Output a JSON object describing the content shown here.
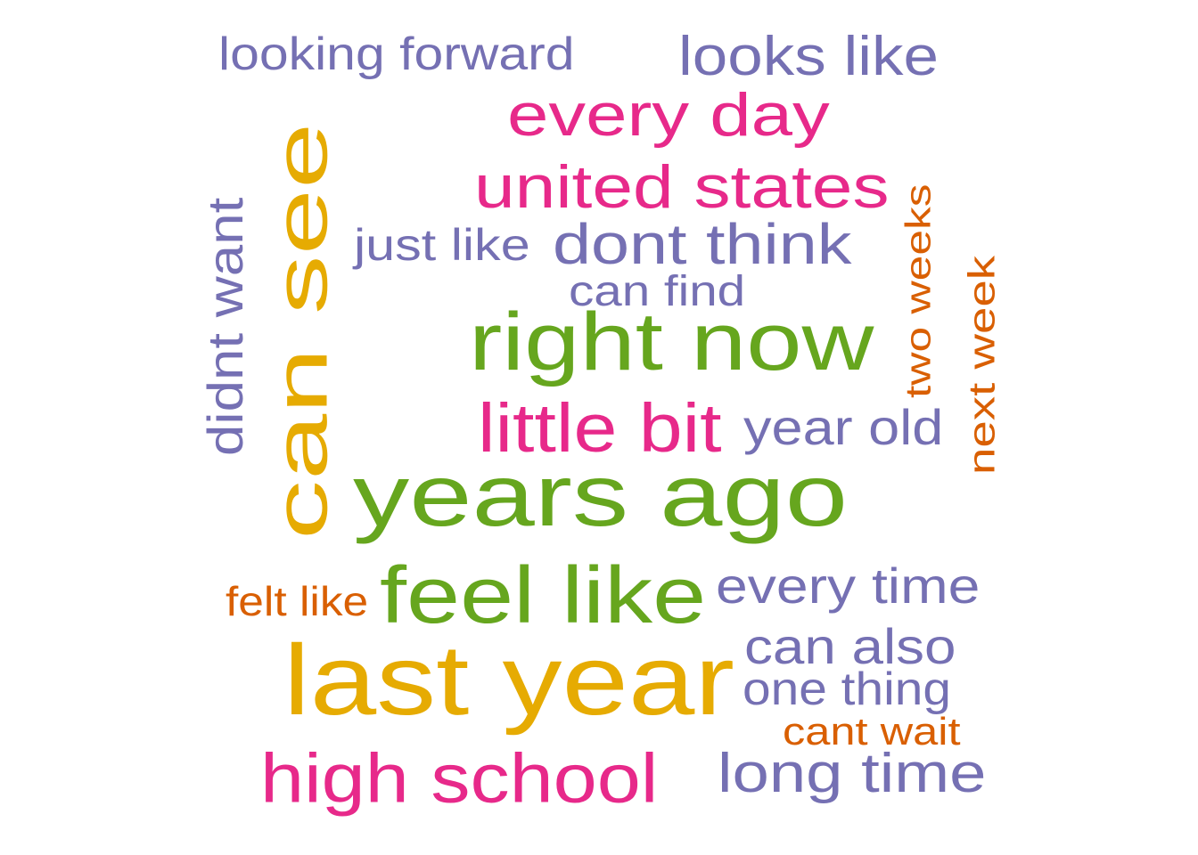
{
  "colors": {
    "green": "#66a61e",
    "gold": "#e6ab02",
    "magenta": "#e7298a",
    "purple": "#7570b3",
    "orange": "#d95f02"
  },
  "words": [
    {
      "key": "years_ago",
      "text": "years ago",
      "color": "green"
    },
    {
      "key": "last_year",
      "text": "last year",
      "color": "gold"
    },
    {
      "key": "can_see",
      "text": "can see",
      "color": "gold"
    },
    {
      "key": "right_now",
      "text": "right now",
      "color": "green"
    },
    {
      "key": "feel_like",
      "text": "feel like",
      "color": "green"
    },
    {
      "key": "high_school",
      "text": "high school",
      "color": "magenta"
    },
    {
      "key": "little_bit",
      "text": "little bit",
      "color": "magenta"
    },
    {
      "key": "united_states",
      "text": "united states",
      "color": "magenta"
    },
    {
      "key": "every_day",
      "text": "every day",
      "color": "magenta"
    },
    {
      "key": "dont_think",
      "text": "dont think",
      "color": "purple"
    },
    {
      "key": "long_time",
      "text": "long time",
      "color": "purple"
    },
    {
      "key": "looks_like",
      "text": "looks like",
      "color": "purple"
    },
    {
      "key": "every_time",
      "text": "every time",
      "color": "purple"
    },
    {
      "key": "can_also",
      "text": "can also",
      "color": "purple"
    },
    {
      "key": "year_old",
      "text": "year old",
      "color": "purple"
    },
    {
      "key": "didnt_want",
      "text": "didnt want",
      "color": "purple"
    },
    {
      "key": "one_thing",
      "text": "one thing",
      "color": "purple"
    },
    {
      "key": "looking_forward",
      "text": "looking forward",
      "color": "purple"
    },
    {
      "key": "just_like",
      "text": "just like",
      "color": "purple"
    },
    {
      "key": "can_find",
      "text": "can find",
      "color": "purple"
    },
    {
      "key": "next_week",
      "text": "next week",
      "color": "orange"
    },
    {
      "key": "two_weeks",
      "text": "two weeks",
      "color": "orange"
    },
    {
      "key": "cant_wait",
      "text": "cant wait",
      "color": "orange"
    },
    {
      "key": "felt_like",
      "text": "felt like",
      "color": "orange"
    }
  ]
}
